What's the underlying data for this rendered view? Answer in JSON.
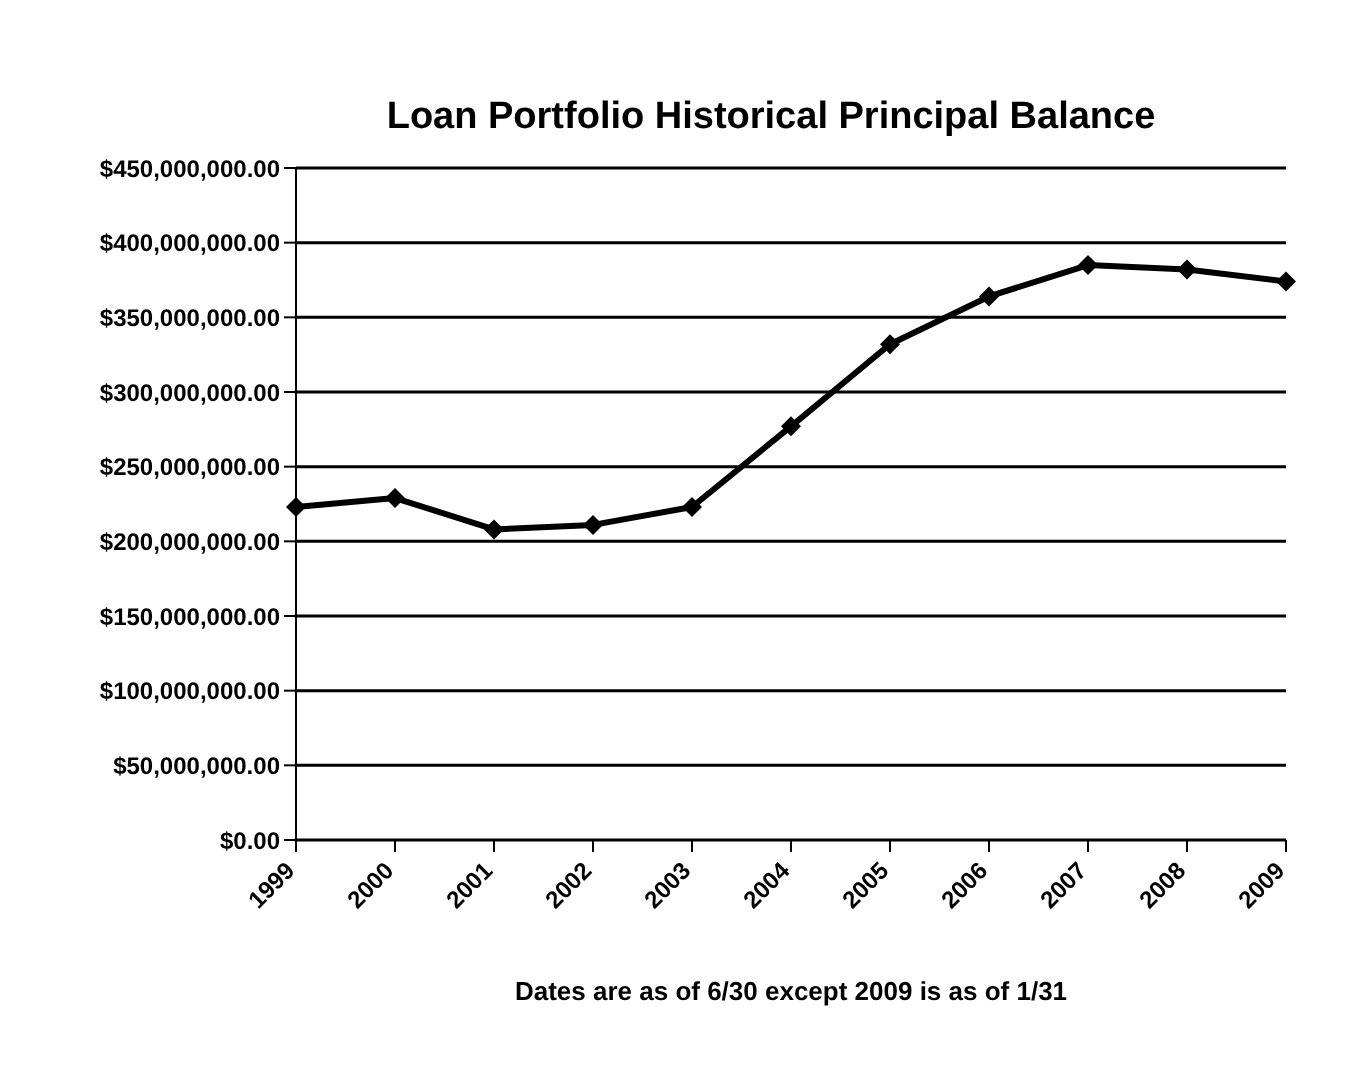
{
  "chart_data": {
    "type": "line",
    "title": "Loan Portfolio Historical Principal Balance",
    "xlabel": "Dates are as of 6/30 except 2009 is as of 1/31",
    "categories": [
      "1999",
      "2000",
      "2001",
      "2002",
      "2003",
      "2004",
      "2005",
      "2006",
      "2007",
      "2008",
      "2009"
    ],
    "series": [
      {
        "color": "#000000",
        "values": [
          223000000,
          229000000,
          208000000,
          211000000,
          223000000,
          277000000,
          332000000,
          364000000,
          385000000,
          382000000,
          374000000
        ]
      }
    ],
    "ylim": [
      0,
      450000000
    ],
    "yticks": [
      {
        "value": 0,
        "label": "$0.00"
      },
      {
        "value": 50000000,
        "label": "$50,000,000.00"
      },
      {
        "value": 100000000,
        "label": "$100,000,000.00"
      },
      {
        "value": 150000000,
        "label": "$150,000,000.00"
      },
      {
        "value": 200000000,
        "label": "$200,000,000.00"
      },
      {
        "value": 250000000,
        "label": "$250,000,000.00"
      },
      {
        "value": 300000000,
        "label": "$300,000,000.00"
      },
      {
        "value": 350000000,
        "label": "$350,000,000.00"
      },
      {
        "value": 400000000,
        "label": "$400,000,000.00"
      },
      {
        "value": 450000000,
        "label": "$450,000,000.00"
      }
    ],
    "grid": "y",
    "marker": "diamond",
    "line_style": "solid",
    "legend": false
  }
}
